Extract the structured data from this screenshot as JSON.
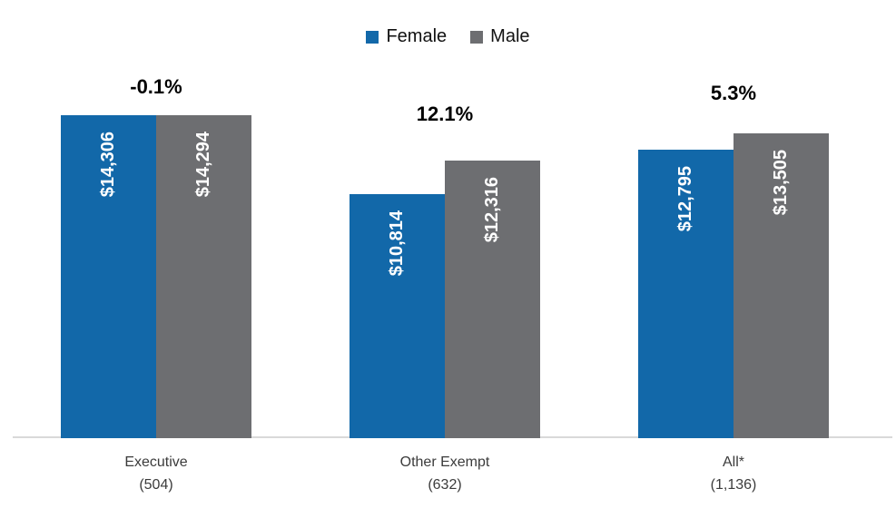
{
  "legend": [
    {
      "label": "Female",
      "color": "#1268A9"
    },
    {
      "label": "Male",
      "color": "#6D6E71"
    }
  ],
  "chart_data": {
    "type": "bar",
    "title": "",
    "xlabel": "",
    "ylabel": "",
    "categories": [
      "Executive",
      "Other Exempt",
      "All*"
    ],
    "category_counts": [
      "(504)",
      "(632)",
      "(1,136)"
    ],
    "series": [
      {
        "name": "Female",
        "color": "#1268A9",
        "values": [
          14306,
          10814,
          12795
        ],
        "value_labels": [
          "$14,306",
          "$10,814",
          "$12,795"
        ]
      },
      {
        "name": "Male",
        "color": "#6D6E71",
        "values": [
          14294,
          12316,
          13505
        ],
        "value_labels": [
          "$14,294",
          "$12,316",
          "$13,505"
        ]
      }
    ],
    "gap_labels": [
      "-0.1%",
      "12.1%",
      "5.3%"
    ],
    "ylim": [
      0,
      14500
    ],
    "grid": false,
    "legend_position": "top-center",
    "value_label_color": "#FFFFFF",
    "axis_line_color": "#D9D9D9"
  }
}
